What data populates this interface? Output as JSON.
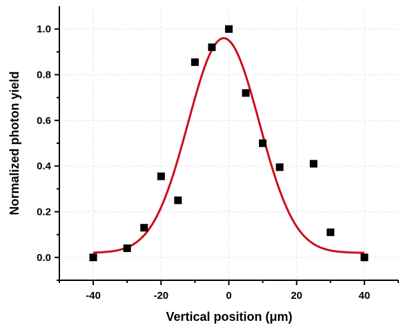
{
  "chart_data": {
    "type": "scatter",
    "title": "",
    "xlabel": "Vertical position (μm)",
    "ylabel": "Normalized photon yield",
    "xlim": [
      -50,
      50
    ],
    "ylim": [
      -0.1,
      1.1
    ],
    "x_ticks": [
      -40,
      -20,
      0,
      20,
      40
    ],
    "x_tick_labels": [
      "-40",
      "-20",
      "0",
      "20",
      "40"
    ],
    "y_ticks": [
      0.0,
      0.2,
      0.4,
      0.6,
      0.8,
      1.0
    ],
    "y_tick_labels": [
      "0.0",
      "0.2",
      "0.4",
      "0.6",
      "0.8",
      "1.0"
    ],
    "grid": true,
    "series": [
      {
        "kind": "scatter",
        "marker": "square",
        "color": "#000000",
        "x": [
          -40,
          -30,
          -25,
          -20,
          -15,
          -10,
          -5,
          0,
          5,
          10,
          15,
          25,
          30,
          40
        ],
        "y": [
          0.0,
          0.04,
          0.13,
          0.355,
          0.25,
          0.855,
          0.92,
          1.0,
          0.72,
          0.5,
          0.395,
          0.41,
          0.11,
          0.0
        ]
      },
      {
        "kind": "line",
        "fit": "gaussian",
        "color": "#cc0d1a",
        "x_range": [
          -40,
          40
        ],
        "y0": 0.02,
        "amplitude": 0.94,
        "center": -1.5,
        "sigma": 10.5
      }
    ]
  }
}
